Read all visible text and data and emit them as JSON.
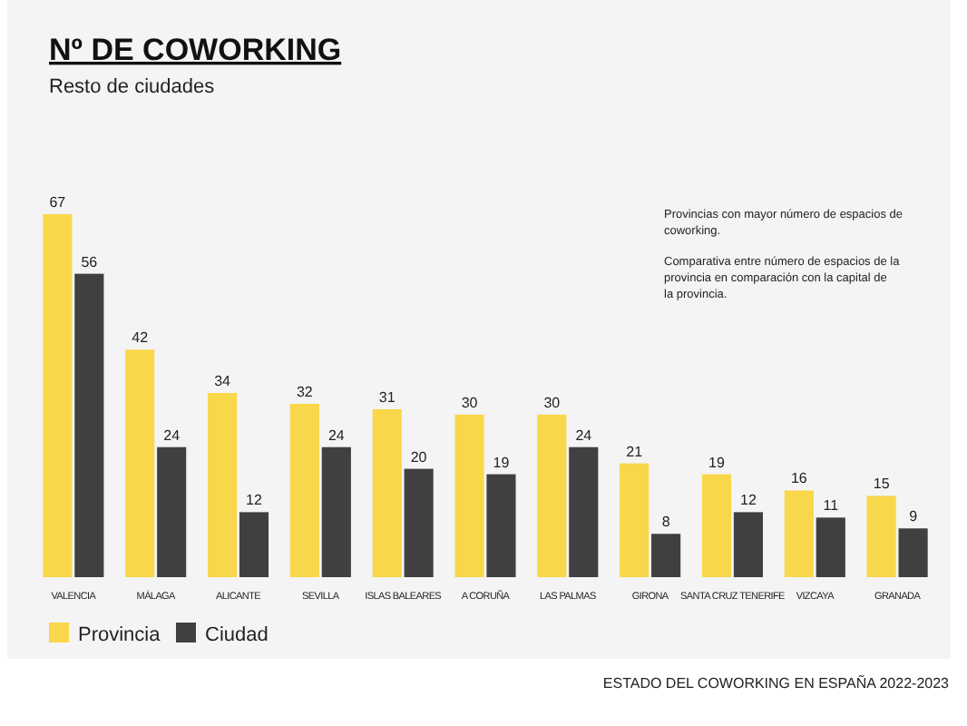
{
  "chart_data": {
    "type": "bar",
    "title": "Nº DE COWORKING",
    "subtitle": "Resto de ciudades",
    "categories": [
      "VALENCIA",
      "MÁLAGA",
      "ALICANTE",
      "SEVILLA",
      "ISLAS BALEARES",
      "A CORUÑA",
      "LAS PALMAS",
      "GIRONA",
      "SANTA CRUZ TENERIFE",
      "VIZCAYA",
      "GRANADA"
    ],
    "series": [
      {
        "name": "Provincia",
        "color": "#f9d74a",
        "values": [
          67,
          42,
          34,
          32,
          31,
          30,
          30,
          21,
          19,
          16,
          15
        ]
      },
      {
        "name": "Ciudad",
        "color": "#404040",
        "values": [
          56,
          24,
          12,
          24,
          20,
          19,
          24,
          8,
          12,
          11,
          9
        ]
      }
    ],
    "data_labels": true,
    "legend": "bottom left",
    "grid": false,
    "annotations": [
      "Provincias con mayor número de espacios de coworking.",
      "Comparativa entre número de espacios de la provincia en comparación con la capital de la provincia.",
      "ESTADO DEL COWORKING EN ESPAÑA 2022-2023"
    ]
  }
}
